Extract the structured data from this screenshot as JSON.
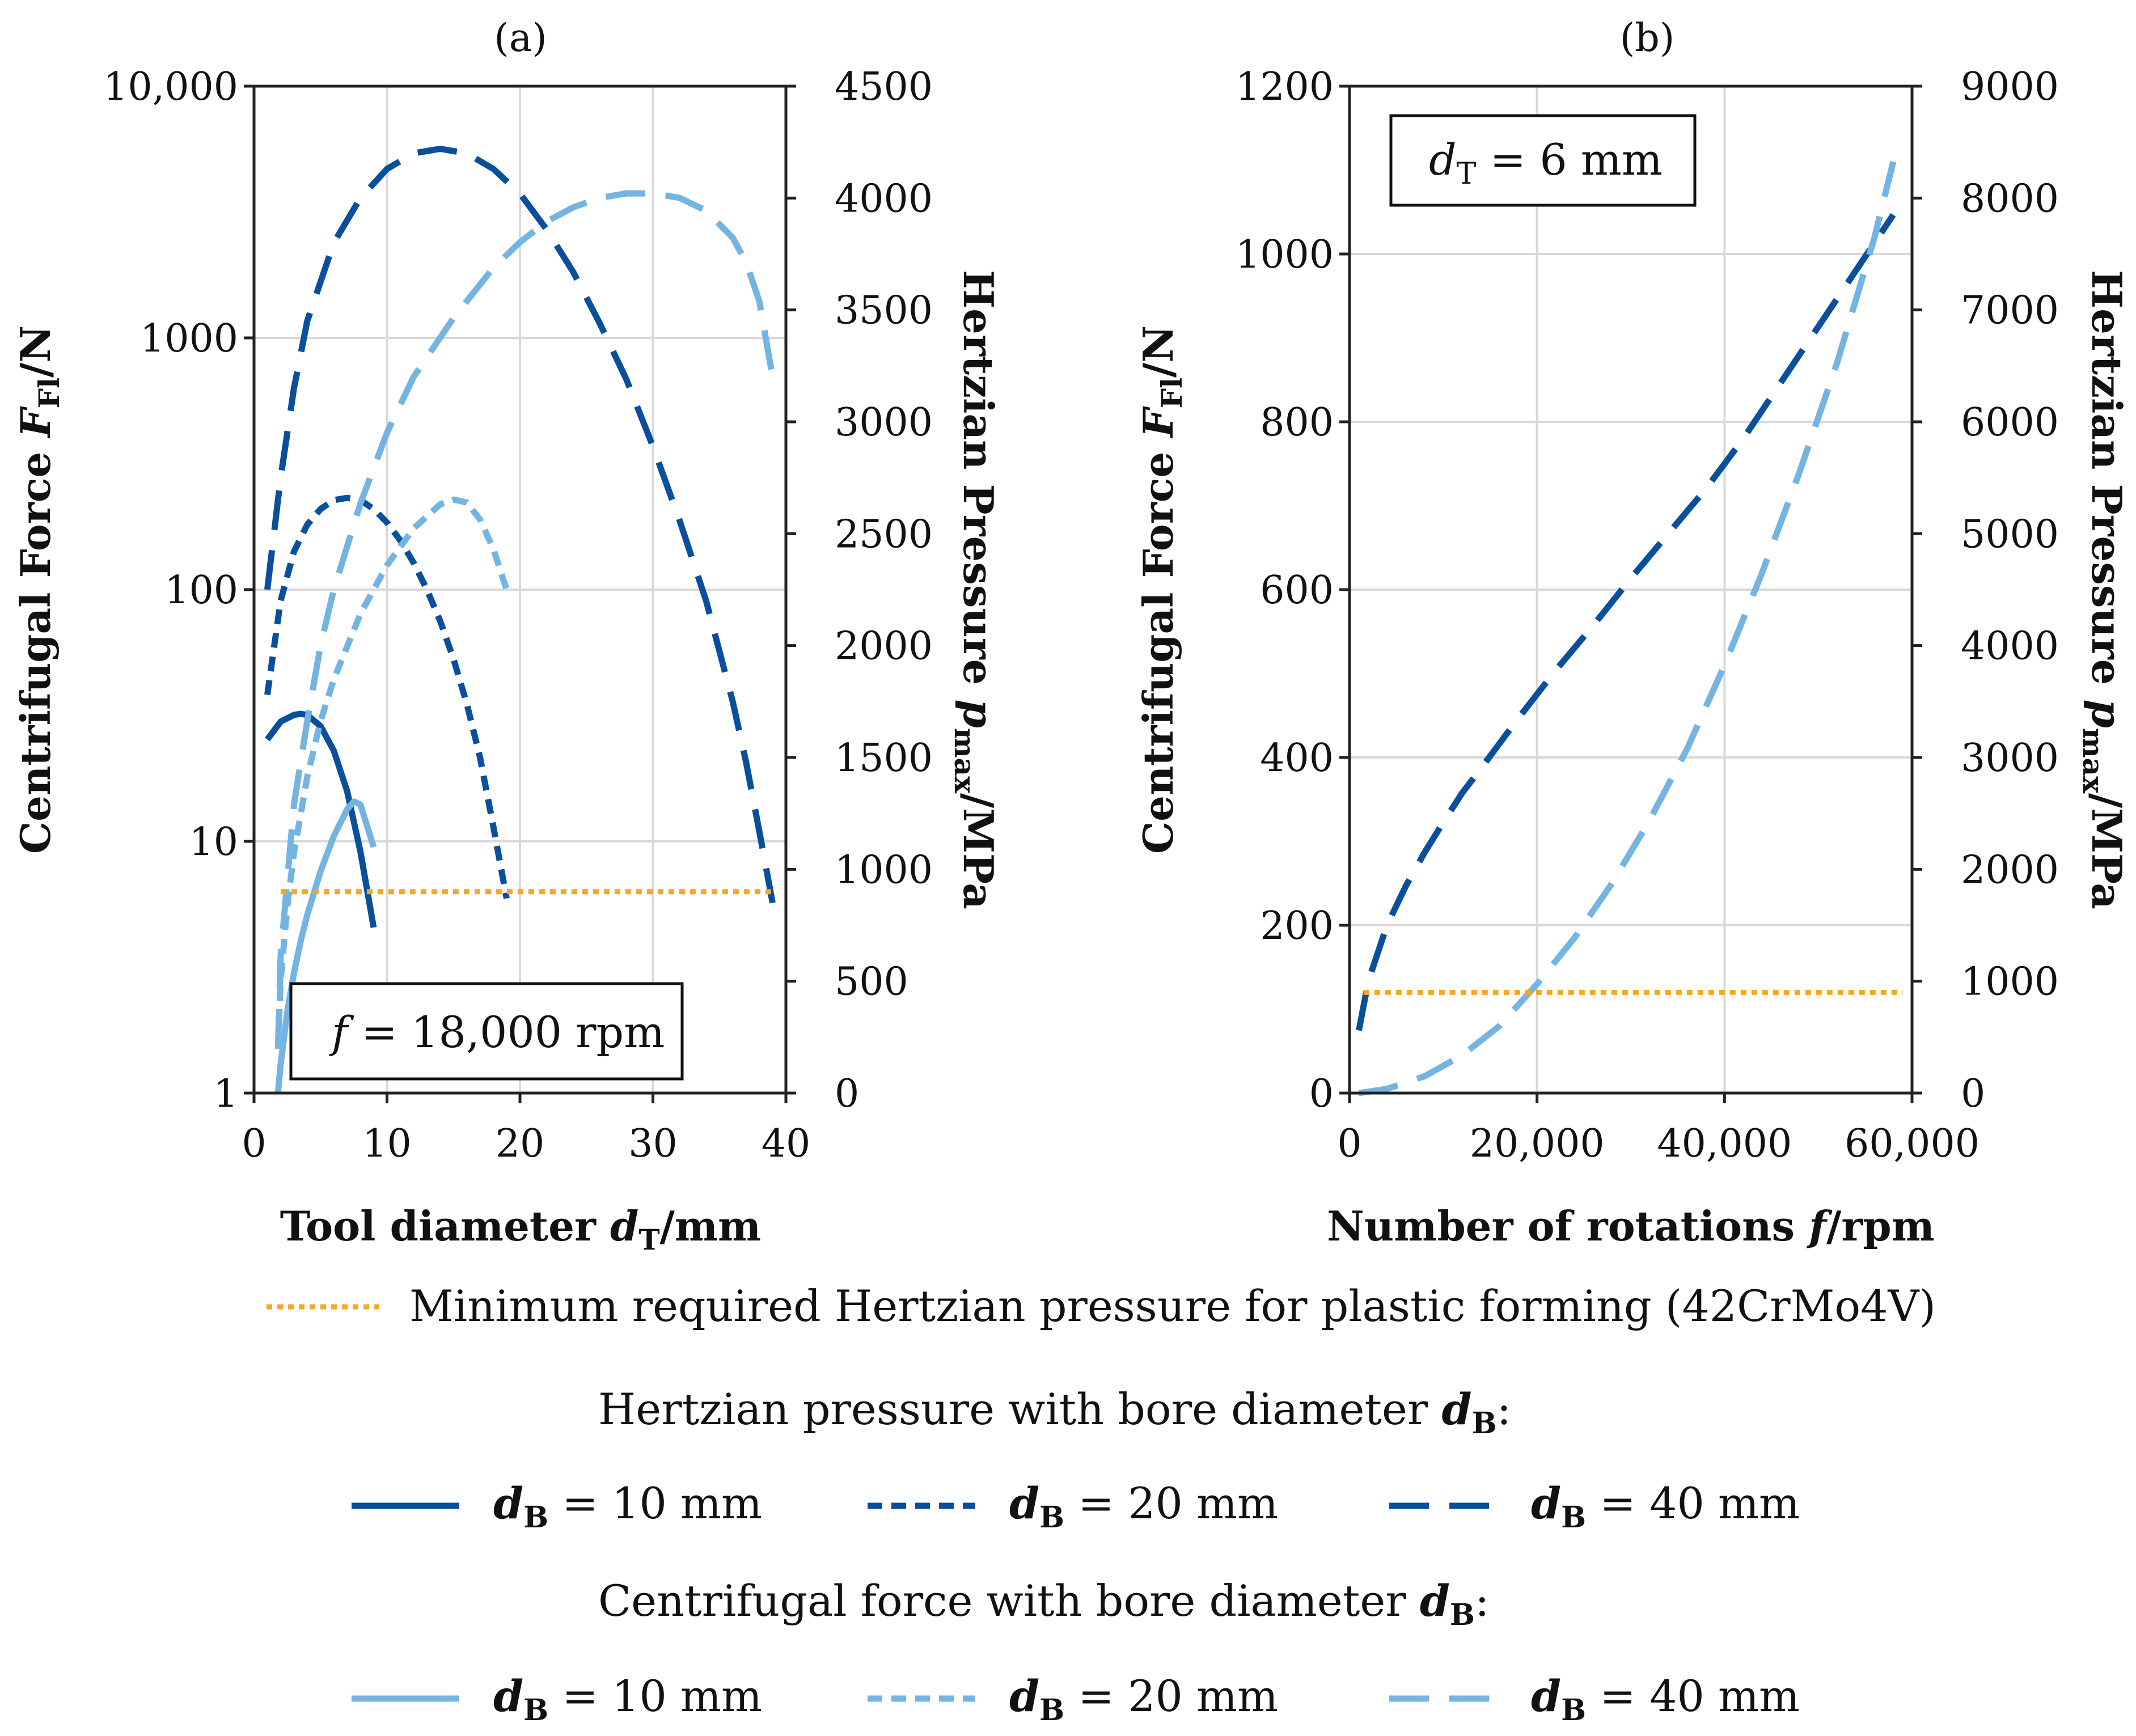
{
  "colors": {
    "dark_blue": "#0a4f9c",
    "light_blue": "#74b4e2",
    "orange": "#f7a823"
  },
  "chart_data": [
    {
      "panel": "(a)",
      "type": "line",
      "xlabel_text": "Tool diameter ",
      "xlabel_var": "d",
      "xlabel_sub": "T",
      "xlabel_unit": "/mm",
      "ylabel_left_text": "Centrifugal Force ",
      "ylabel_left_var": "F",
      "ylabel_left_sub": "Fl",
      "ylabel_left_unit": "/N",
      "ylabel_right_text": "Hertzian Pressure ",
      "ylabel_right_var": "p",
      "ylabel_right_sub": "max",
      "ylabel_right_unit": "/MPa",
      "xlim": [
        0,
        40
      ],
      "ylim_left": [
        1,
        10000
      ],
      "ylim_right": [
        0,
        4500
      ],
      "yscale_left": "log",
      "grid": true,
      "x_ticks": [
        0,
        10,
        20,
        30,
        40
      ],
      "x_tick_labels": [
        "0",
        "10",
        "20",
        "30",
        "40"
      ],
      "y_left_ticks": [
        1,
        10,
        100,
        1000,
        10000
      ],
      "y_left_tick_labels": [
        "1",
        "10",
        "100",
        "1000",
        "10,000"
      ],
      "y_right_ticks": [
        0,
        500,
        1000,
        1500,
        2000,
        2500,
        3000,
        3500,
        4000,
        4500
      ],
      "y_right_tick_labels": [
        "0",
        "500",
        "1000",
        "1500",
        "2000",
        "2500",
        "3000",
        "3500",
        "4000",
        "4500"
      ],
      "annotation": {
        "var": "f",
        "text": " = 18,000 rpm"
      },
      "series": [
        {
          "group": "hertzian",
          "bore_mm": 10,
          "axis": "right",
          "style": "solid",
          "x": [
            1,
            2,
            3,
            3.5,
            4,
            5,
            6,
            7,
            8,
            9
          ],
          "y": [
            1580,
            1660,
            1690,
            1695,
            1690,
            1640,
            1530,
            1350,
            1080,
            740
          ]
        },
        {
          "group": "hertzian",
          "bore_mm": 20,
          "axis": "right",
          "style": "short-dash",
          "x": [
            1,
            2,
            3,
            4,
            5,
            6,
            7,
            8,
            9,
            10,
            11,
            12,
            13,
            14,
            15,
            16,
            17,
            18,
            19
          ],
          "y": [
            1780,
            2200,
            2420,
            2540,
            2610,
            2650,
            2660,
            2650,
            2610,
            2550,
            2470,
            2370,
            2250,
            2110,
            1940,
            1740,
            1500,
            1190,
            870
          ]
        },
        {
          "group": "hertzian",
          "bore_mm": 40,
          "axis": "right",
          "style": "long-dash",
          "x": [
            1,
            2,
            3,
            4,
            6,
            8,
            10,
            12,
            14,
            16,
            18,
            20,
            22,
            24,
            26,
            28,
            30,
            32,
            34,
            36,
            37,
            38,
            39
          ],
          "y": [
            2250,
            2750,
            3150,
            3450,
            3800,
            4000,
            4130,
            4200,
            4220,
            4200,
            4130,
            4020,
            3860,
            3670,
            3440,
            3190,
            2890,
            2560,
            2200,
            1750,
            1480,
            1170,
            850
          ]
        },
        {
          "group": "centrifugal",
          "bore_mm": 10,
          "axis": "left",
          "style": "solid",
          "x": [
            1.8,
            2,
            2.5,
            3,
            3.5,
            4,
            5,
            6,
            7,
            7.5,
            8,
            9
          ],
          "y": [
            1,
            1.3,
            2.1,
            3.0,
            4.0,
            5.1,
            7.6,
            10.5,
            13.4,
            14.4,
            14.0,
            9.5
          ]
        },
        {
          "group": "centrifugal",
          "bore_mm": 20,
          "axis": "left",
          "style": "short-dash",
          "x": [
            1.8,
            2,
            2.5,
            3,
            4,
            5,
            6,
            8,
            10,
            12,
            14,
            15,
            16,
            17,
            18,
            19
          ],
          "y": [
            1.5,
            2.8,
            5.5,
            9,
            18,
            30,
            44,
            80,
            125,
            175,
            218,
            228,
            222,
            190,
            145,
            100
          ]
        },
        {
          "group": "centrifugal",
          "bore_mm": 40,
          "axis": "left",
          "style": "long-dash",
          "x": [
            1.8,
            2,
            3,
            4,
            5,
            6,
            8,
            10,
            12,
            15,
            18,
            20,
            22,
            24,
            26,
            28,
            30,
            32,
            34,
            36,
            37,
            38,
            39
          ],
          "y": [
            1.5,
            3.5,
            14,
            30,
            60,
            100,
            220,
            420,
            700,
            1200,
            1900,
            2400,
            2900,
            3300,
            3600,
            3750,
            3750,
            3600,
            3200,
            2500,
            2000,
            1400,
            700
          ]
        },
        {
          "group": "minimum",
          "axis": "right",
          "style": "dotted",
          "x": [
            2,
            39
          ],
          "y": [
            900,
            900
          ]
        }
      ]
    },
    {
      "panel": "(b)",
      "type": "line",
      "xlabel_text": "Number of rotations ",
      "xlabel_var": "f",
      "xlabel_sub": "",
      "xlabel_unit": "/rpm",
      "ylabel_left_text": "Centrifugal Force ",
      "ylabel_left_var": "F",
      "ylabel_left_sub": "Fl",
      "ylabel_left_unit": "/N",
      "ylabel_right_text": "Hertzian Pressure ",
      "ylabel_right_var": "p",
      "ylabel_right_sub": "max",
      "ylabel_right_unit": "/MPa",
      "xlim": [
        0,
        60000
      ],
      "ylim_left": [
        0,
        1200
      ],
      "ylim_right": [
        0,
        9000
      ],
      "yscale_left": "linear",
      "grid": true,
      "x_ticks": [
        0,
        20000,
        40000,
        60000
      ],
      "x_tick_labels": [
        "0",
        "20,000",
        "40,000",
        "60,000"
      ],
      "y_left_ticks": [
        0,
        200,
        400,
        600,
        800,
        1000,
        1200
      ],
      "y_left_tick_labels": [
        "0",
        "200",
        "400",
        "600",
        "800",
        "1000",
        "1200"
      ],
      "y_right_ticks": [
        0,
        1000,
        2000,
        3000,
        4000,
        5000,
        6000,
        7000,
        8000,
        9000
      ],
      "y_right_tick_labels": [
        "0",
        "1000",
        "2000",
        "3000",
        "4000",
        "5000",
        "6000",
        "7000",
        "8000",
        "9000"
      ],
      "annotation": {
        "var": "d",
        "sub": "T",
        "text": " = 6 mm"
      },
      "series": [
        {
          "group": "hertzian",
          "bore_mm": 40,
          "axis": "right",
          "style": "long-dash",
          "x": [
            1000,
            2000,
            4000,
            6000,
            8000,
            10000,
            12000,
            14000,
            18000,
            22000,
            26000,
            30000,
            34000,
            38000,
            42000,
            46000,
            50000,
            54000,
            58000
          ],
          "y": [
            560,
            1000,
            1500,
            1850,
            2150,
            2420,
            2680,
            2900,
            3350,
            3780,
            4180,
            4600,
            5000,
            5400,
            5850,
            6350,
            6850,
            7350,
            7850
          ]
        },
        {
          "group": "centrifugal",
          "bore_mm": 40,
          "axis": "left",
          "style": "long-dash",
          "x": [
            1000,
            4000,
            8000,
            12000,
            16000,
            20000,
            24000,
            28000,
            32000,
            36000,
            40000,
            44000,
            48000,
            52000,
            56000,
            58000
          ],
          "y": [
            0,
            5,
            20,
            45,
            80,
            130,
            185,
            250,
            325,
            410,
            510,
            620,
            740,
            870,
            1020,
            1110
          ]
        },
        {
          "group": "minimum",
          "axis": "right",
          "style": "dotted",
          "x": [
            1500,
            59000
          ],
          "y": [
            900,
            900
          ]
        }
      ]
    }
  ],
  "legend": {
    "minimum_label": "Minimum required Hertzian pressure for plastic forming (42CrMo4V)",
    "hertzian_heading_text": "Hertzian pressure with bore diameter ",
    "centrifugal_heading_text": "Centrifugal force with bore diameter ",
    "heading_var": "d",
    "heading_sub": "B",
    "heading_suffix": ":",
    "entry_var": "d",
    "entry_sub": "B",
    "entries": [
      {
        "style": "solid",
        "text": " = 10 mm"
      },
      {
        "style": "short-dash",
        "text": " = 20 mm"
      },
      {
        "style": "long-dash",
        "text": " = 40 mm"
      }
    ]
  }
}
